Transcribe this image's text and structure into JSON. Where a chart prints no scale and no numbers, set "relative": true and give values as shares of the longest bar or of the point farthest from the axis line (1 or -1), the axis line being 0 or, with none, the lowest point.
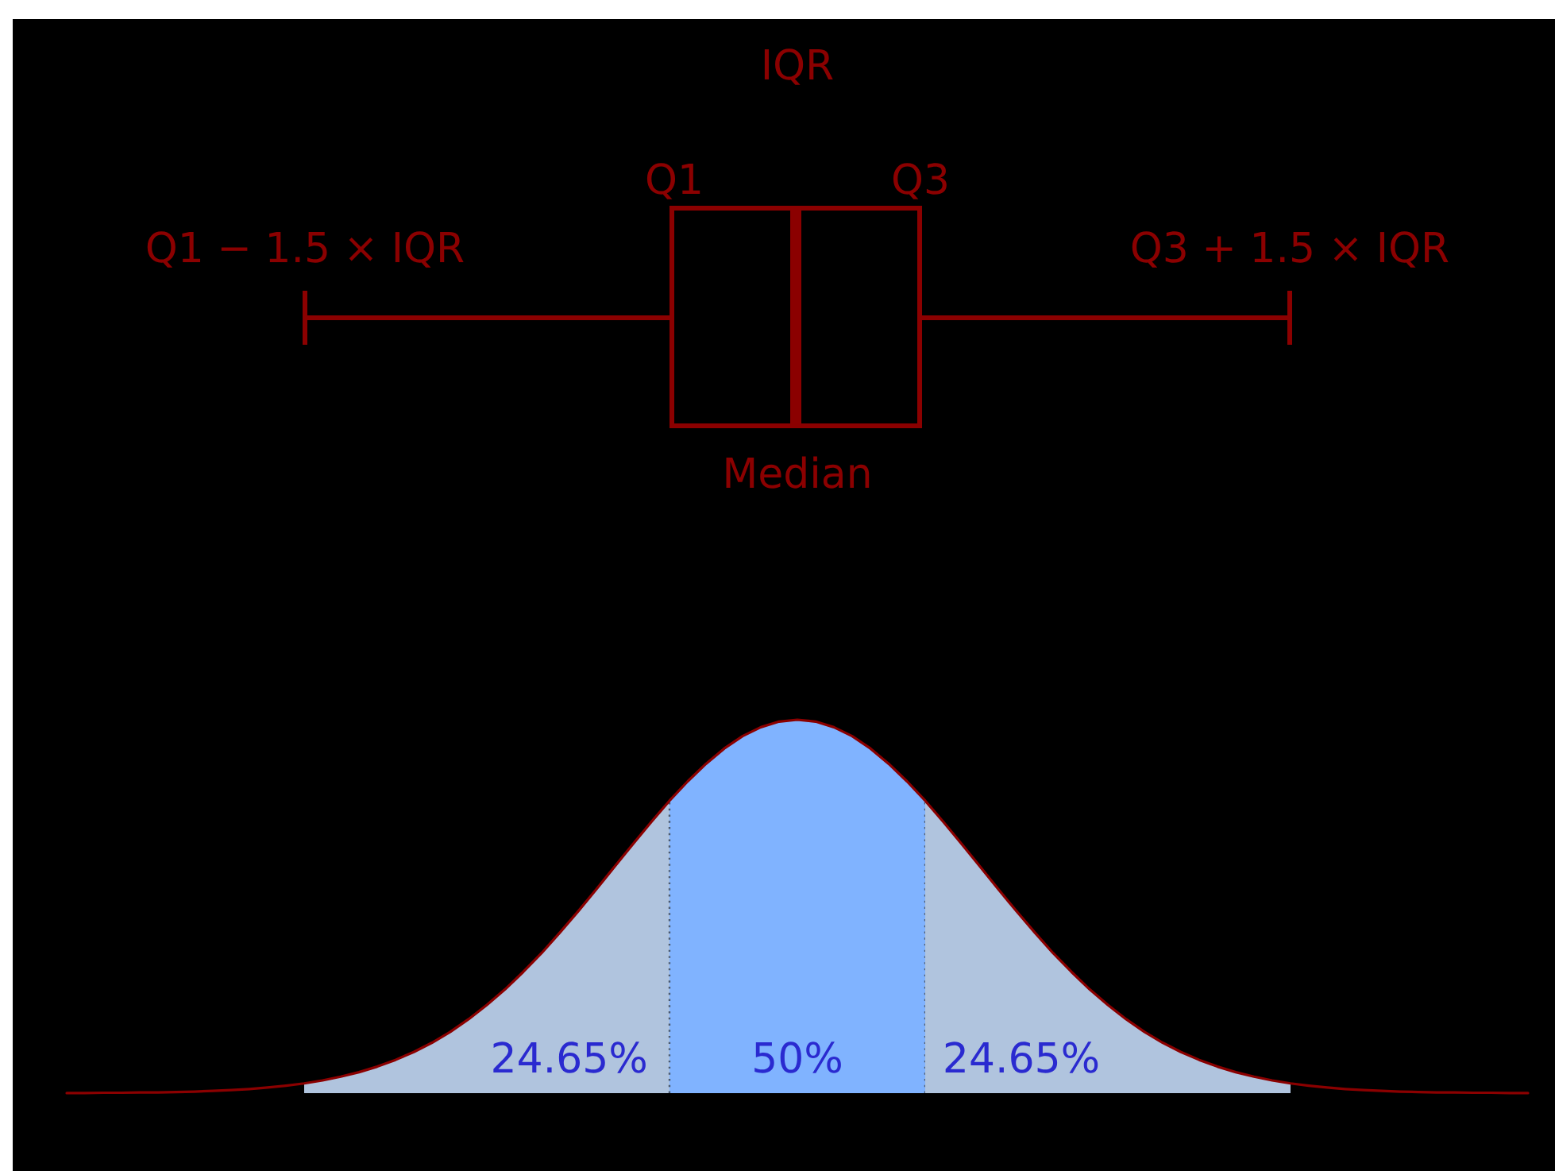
{
  "chart_data": [
    {
      "type": "other",
      "color": "#8b0000",
      "annotations": [
        "IQR",
        "Q1",
        "Q3",
        "Q1 − 1.5 × IQR",
        "Q3 + 1.5 × IQR",
        "Median"
      ]
    },
    {
      "type": "area",
      "relative": true,
      "categories": [
        null,
        null,
        null,
        null,
        null,
        null,
        null,
        null,
        null,
        null,
        null,
        null,
        null,
        null,
        null,
        null,
        null,
        null,
        null,
        null,
        null,
        null,
        null,
        null,
        null,
        null,
        null,
        null,
        null,
        null,
        null,
        null,
        null,
        null,
        null,
        null,
        null,
        null,
        null,
        null,
        null,
        null,
        null,
        null,
        null,
        null,
        null,
        null,
        null,
        null,
        null,
        null,
        null,
        null,
        null,
        null,
        null,
        null,
        null,
        null,
        null,
        null,
        null,
        null,
        null,
        null,
        null,
        null,
        null,
        null,
        null,
        null,
        null,
        null,
        null,
        null,
        null,
        null,
        null,
        null,
        null
      ],
      "series": [
        {
          "type": "area",
          "color": "#b0c4de",
          "values": [
            null,
            null,
            null,
            null,
            null,
            null,
            null,
            null,
            null,
            null,
            null,
            null,
            null,
            0.026,
            0.034,
            0.044,
            0.056,
            0.071,
            0.089,
            0.11,
            0.135,
            0.164,
            0.198,
            0.236,
            0.278,
            0.325,
            0.375,
            0.43,
            0.487,
            0.546,
            0.607,
            0.667,
            0.726,
            0.783,
            null,
            null,
            null,
            null,
            null,
            null,
            null,
            null,
            null,
            null,
            null,
            null,
            null,
            null,
            null,
            null,
            null,
            null,
            null,
            null,
            null,
            null,
            null,
            null,
            null,
            null,
            null,
            null,
            null,
            null,
            null,
            null,
            null,
            null,
            null,
            null,
            null,
            null,
            null,
            null,
            null,
            null,
            null,
            null,
            null,
            null,
            null
          ]
        },
        {
          "type": "area",
          "color": "#80b3ff",
          "line_style": "dotted",
          "values": [
            null,
            null,
            null,
            null,
            null,
            null,
            null,
            null,
            null,
            null,
            null,
            null,
            null,
            null,
            null,
            null,
            null,
            null,
            null,
            null,
            null,
            null,
            null,
            null,
            null,
            null,
            null,
            null,
            null,
            null,
            null,
            null,
            null,
            0.783,
            0.835,
            0.882,
            0.923,
            0.956,
            0.98,
            0.995,
            1,
            0.995,
            0.98,
            0.956,
            0.923,
            0.882,
            0.835,
            0.783,
            null,
            null,
            null,
            null,
            null,
            null,
            null,
            null,
            null,
            null,
            null,
            null,
            null,
            null,
            null,
            null,
            null,
            null,
            null,
            null,
            null,
            null,
            null,
            null,
            null,
            null,
            null,
            null,
            null,
            null,
            null,
            null,
            null
          ]
        },
        {
          "type": "area",
          "color": "#b0c4de",
          "values": [
            null,
            null,
            null,
            null,
            null,
            null,
            null,
            null,
            null,
            null,
            null,
            null,
            null,
            null,
            null,
            null,
            null,
            null,
            null,
            null,
            null,
            null,
            null,
            null,
            null,
            null,
            null,
            null,
            null,
            null,
            null,
            null,
            null,
            null,
            null,
            null,
            null,
            null,
            null,
            null,
            null,
            null,
            null,
            null,
            null,
            null,
            null,
            0.783,
            0.726,
            0.667,
            0.607,
            0.546,
            0.487,
            0.43,
            0.375,
            0.325,
            0.278,
            0.236,
            0.198,
            0.164,
            0.135,
            0.11,
            0.089,
            0.071,
            0.056,
            0.044,
            0.034,
            0.026,
            null,
            null,
            null,
            null,
            null,
            null,
            null,
            null,
            null,
            null,
            null,
            null,
            null
          ]
        },
        {
          "type": "line",
          "color": "#8b0000",
          "values": [
            0,
            0,
            0.001,
            0.001,
            0.002,
            0.002,
            0.003,
            0.004,
            0.006,
            0.008,
            0.011,
            0.015,
            0.02,
            0.026,
            0.034,
            0.044,
            0.056,
            0.071,
            0.089,
            0.11,
            0.135,
            0.164,
            0.198,
            0.236,
            0.278,
            0.325,
            0.375,
            0.43,
            0.487,
            0.546,
            0.607,
            0.667,
            0.726,
            0.783,
            0.835,
            0.882,
            0.923,
            0.956,
            0.98,
            0.995,
            1,
            0.995,
            0.98,
            0.956,
            0.923,
            0.882,
            0.835,
            0.783,
            0.726,
            0.667,
            0.607,
            0.546,
            0.487,
            0.43,
            0.375,
            0.325,
            0.278,
            0.236,
            0.198,
            0.164,
            0.135,
            0.11,
            0.089,
            0.071,
            0.056,
            0.044,
            0.034,
            0.026,
            0.02,
            0.015,
            0.011,
            0.008,
            0.006,
            0.004,
            0.003,
            0.002,
            0.002,
            0.001,
            0.001,
            0,
            0
          ]
        }
      ],
      "annotations": [
        "24.65%",
        "50%",
        "24.65%"
      ]
    }
  ]
}
